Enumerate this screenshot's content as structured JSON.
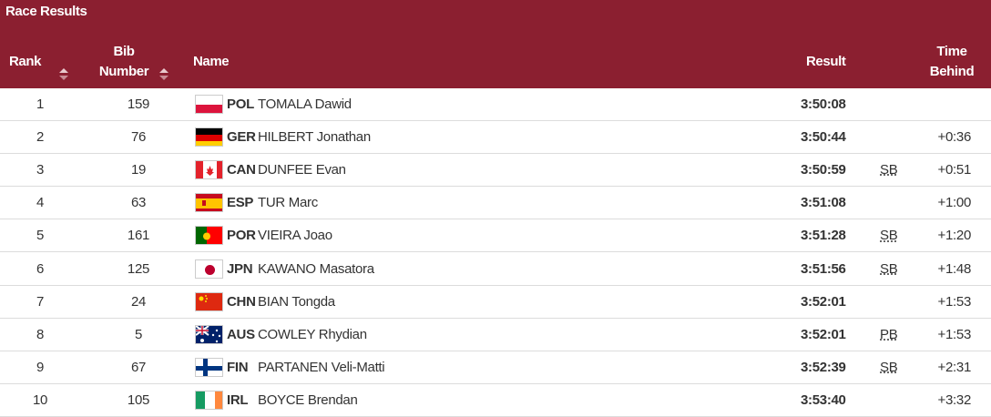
{
  "title": "Race Results",
  "columns": {
    "rank": "Rank",
    "bib": "Bib Number",
    "name": "Name",
    "result": "Result",
    "behind": "Time Behind"
  },
  "rows": [
    {
      "rank": "1",
      "bib": "159",
      "country": "POL",
      "name": "TOMALA Dawid",
      "result": "3:50:08"
    },
    {
      "rank": "2",
      "bib": "76",
      "country": "GER",
      "name": "HILBERT Jonathan",
      "result": "3:50:44",
      "behind": "+0:36"
    },
    {
      "rank": "3",
      "bib": "19",
      "country": "CAN",
      "name": "DUNFEE Evan",
      "result": "3:50:59",
      "note": "SB",
      "behind": "+0:51"
    },
    {
      "rank": "4",
      "bib": "63",
      "country": "ESP",
      "name": "TUR Marc",
      "result": "3:51:08",
      "behind": "+1:00"
    },
    {
      "rank": "5",
      "bib": "161",
      "country": "POR",
      "name": "VIEIRA Joao",
      "result": "3:51:28",
      "note": "SB",
      "behind": "+1:20"
    },
    {
      "rank": "6",
      "bib": "125",
      "country": "JPN",
      "name": "KAWANO Masatora",
      "result": "3:51:56",
      "note": "SB",
      "behind": "+1:48"
    },
    {
      "rank": "7",
      "bib": "24",
      "country": "CHN",
      "name": "BIAN Tongda",
      "result": "3:52:01",
      "behind": "+1:53"
    },
    {
      "rank": "8",
      "bib": "5",
      "country": "AUS",
      "name": "COWLEY Rhydian",
      "result": "3:52:01",
      "note": "PB",
      "behind": "+1:53"
    },
    {
      "rank": "9",
      "bib": "67",
      "country": "FIN",
      "name": "PARTANEN Veli-Matti",
      "result": "3:52:39",
      "note": "SB",
      "behind": "+2:31"
    },
    {
      "rank": "10",
      "bib": "105",
      "country": "IRL",
      "name": "BOYCE Brendan",
      "result": "3:53:40",
      "behind": "+3:32"
    }
  ]
}
